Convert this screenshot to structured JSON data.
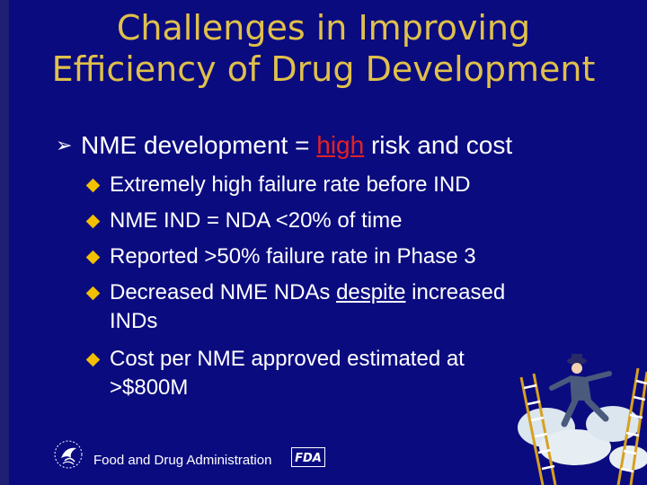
{
  "title": {
    "line1": "Challenges in Improving",
    "line2": "Efficiency of Drug Development"
  },
  "main_bullet": {
    "before": "NME development = ",
    "highlight": "high",
    "after": " risk and cost"
  },
  "sub_bullets": {
    "b1": "Extremely high failure rate before IND",
    "b2": "NME IND = NDA <20% of time",
    "b3": "Reported >50% failure rate in Phase 3",
    "b4_before": "Decreased NME NDAs ",
    "b4_underline": "despite",
    "b4_after": " increased",
    "b4_cont": "INDs",
    "b5": "Cost per NME approved estimated at",
    "b5_cont": ">$800M"
  },
  "footer": {
    "text": "Food and Drug Administration"
  },
  "logos": {
    "fda_text": "FDA"
  },
  "colors": {
    "background": "#0b0b80",
    "title": "#e0c04a",
    "highlight": "#e32222",
    "bullet_diamond": "#f2c000"
  }
}
